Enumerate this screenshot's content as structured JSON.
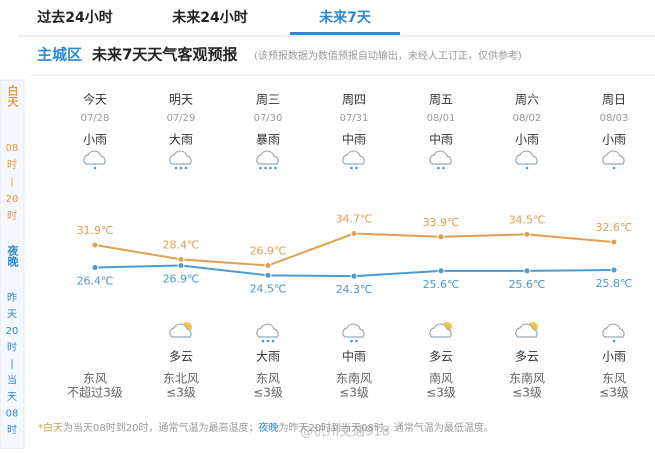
{
  "tabs": [
    "过去24小时",
    "未来24小时",
    "未来7天"
  ],
  "header": {
    "area": "主城区",
    "title": "未来7天天气客观预报",
    "note": "(该预报数据为数值预报自动输出，未经人工订正，仅供参考)"
  },
  "side": {
    "day": "白天",
    "day_time": [
      "08",
      "时",
      "|",
      "20",
      "时"
    ],
    "night": "夜晚",
    "night_time": [
      "昨",
      "天",
      "20",
      "时",
      "|",
      "当",
      "天",
      "08",
      "时"
    ]
  },
  "days": [
    {
      "name": "今天",
      "date": "07/28",
      "day_weather": "小雨",
      "night_weather": null,
      "wind_dir": "东风",
      "wind_level": "不超过3级"
    },
    {
      "name": "明天",
      "date": "07/29",
      "day_weather": "大雨",
      "night_weather": "多云",
      "wind_dir": "东北风",
      "wind_level": "≤3级"
    },
    {
      "name": "周三",
      "date": "07/30",
      "day_weather": "暴雨",
      "night_weather": "大雨",
      "wind_dir": "东风",
      "wind_level": "≤3级"
    },
    {
      "name": "周四",
      "date": "07/31",
      "day_weather": "中雨",
      "night_weather": "中雨",
      "wind_dir": "东南风",
      "wind_level": "≤3级"
    },
    {
      "name": "周五",
      "date": "08/01",
      "day_weather": "中雨",
      "night_weather": "多云",
      "wind_dir": "南风",
      "wind_level": "≤3级"
    },
    {
      "name": "周六",
      "date": "08/02",
      "day_weather": "小雨",
      "night_weather": "多云",
      "wind_dir": "东南风",
      "wind_level": "≤3级"
    },
    {
      "name": "周日",
      "date": "08/03",
      "day_weather": "小雨",
      "night_weather": "小雨",
      "wind_dir": "东风",
      "wind_level": "≤3级"
    }
  ],
  "chart_data": {
    "type": "line",
    "ylim": [
      18,
      38
    ],
    "series": [
      {
        "name": "白天",
        "color": "#e0a050",
        "values": [
          31.9,
          28.4,
          26.9,
          34.7,
          33.9,
          34.5,
          32.6
        ],
        "value_labels": [
          "31.9℃",
          "28.4℃",
          "26.9℃",
          "34.7℃",
          "33.9℃",
          "34.5℃",
          "32.6℃"
        ]
      },
      {
        "name": "夜晚",
        "color": "#4a9ad0",
        "values": [
          26.4,
          26.9,
          24.5,
          24.3,
          25.6,
          25.6,
          25.8
        ],
        "value_labels": [
          "26.4℃",
          "26.9℃",
          "24.5℃",
          "24.3℃",
          "25.6℃",
          "25.6℃",
          "25.8℃"
        ]
      }
    ]
  },
  "footer": {
    "star": "*",
    "day": "白天",
    "text1": "为当天08时到20时，通常气温为最高温度；",
    "night": "夜晚",
    "text2": "为昨天20时到当天08时，通常气温为最低温度。"
  },
  "watermark": "@杭州交通918"
}
